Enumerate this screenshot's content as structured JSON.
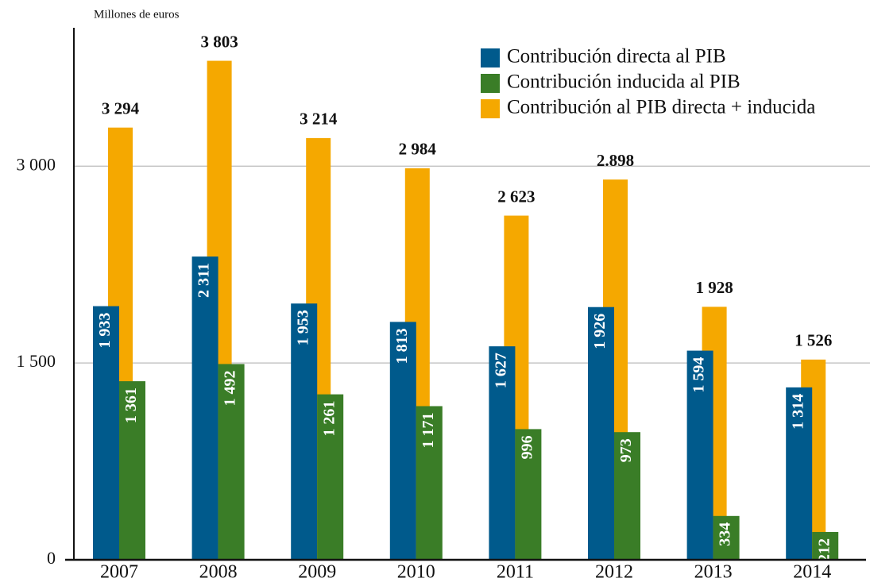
{
  "chart_data": {
    "type": "bar",
    "y_label": "Millones de euros",
    "categories": [
      "2007",
      "2008",
      "2009",
      "2010",
      "2011",
      "2012",
      "2013",
      "2014"
    ],
    "series": [
      {
        "name": "Contribución directa al PIB",
        "color": "#005a8c",
        "values": [
          1933,
          2311,
          1953,
          1813,
          1627,
          1926,
          1594,
          1314
        ],
        "value_labels": [
          "1 933",
          "2 311",
          "1 953",
          "1 813",
          "1 627",
          "1 926",
          "1 594",
          "1 314"
        ]
      },
      {
        "name": "Contribución inducida al PIB",
        "color": "#3a7d27",
        "values": [
          1361,
          1492,
          1261,
          1171,
          996,
          973,
          334,
          212
        ],
        "value_labels": [
          "1 361",
          "1 492",
          "1 261",
          "1 171",
          "996",
          "973",
          "334",
          "212"
        ]
      },
      {
        "name": "Contribución al PIB directa + inducida",
        "color": "#f5a800",
        "values": [
          3294,
          3803,
          3214,
          2984,
          2623,
          2898,
          1928,
          1526
        ],
        "value_labels": [
          "3 294",
          "3 803",
          "3 214",
          "2 984",
          "2 623",
          "2.898",
          "1 928",
          "1 526"
        ]
      }
    ],
    "ylim": [
      0,
      4000
    ],
    "yticks": [
      0,
      {
        "value": 1500,
        "label": "1 500"
      },
      {
        "value": 3000,
        "label": "3 000"
      }
    ],
    "grid": true,
    "legend": "upper right"
  }
}
